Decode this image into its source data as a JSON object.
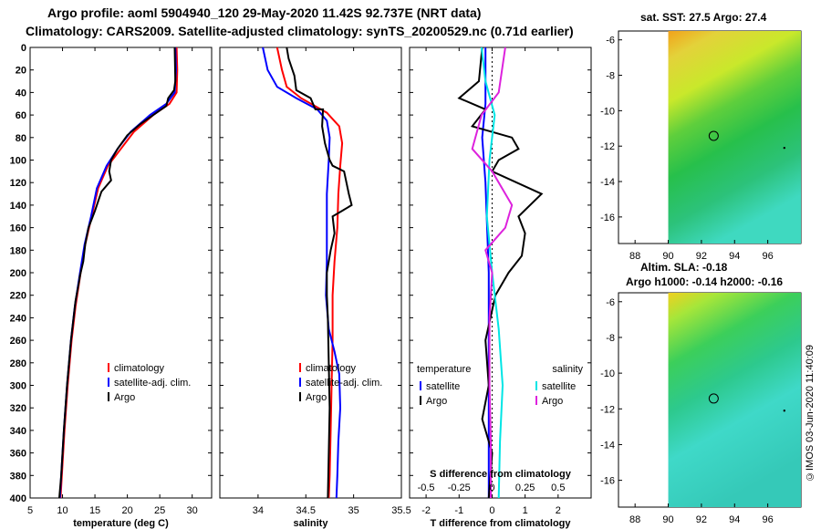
{
  "header": {
    "line1": "Argo profile: aoml 5904940_120 29-May-2020 11.42S 92.737E (NRT data)",
    "line2": "Climatology: CARS2009. Satellite-adjusted climatology: synTS_20200529.nc (0.71d earlier)"
  },
  "colors": {
    "climatology": "#ff0000",
    "satellite": "#0000ff",
    "argo": "#000000",
    "sat_salinity": "#00e5e5",
    "argo_salinity": "#dd22dd"
  },
  "chart_data": [
    {
      "type": "line",
      "panel": "temperature",
      "xlabel": "temperature (deg C)",
      "ylabel": "",
      "xlim": [
        5,
        33
      ],
      "ylim": [
        400,
        0
      ],
      "xticks": [
        5,
        10,
        15,
        20,
        25,
        30
      ],
      "yticks": [
        0,
        20,
        40,
        60,
        80,
        100,
        120,
        140,
        160,
        180,
        200,
        220,
        240,
        260,
        280,
        300,
        320,
        340,
        360,
        380,
        400
      ],
      "legend": [
        "climatology",
        "satellite-adj. clim.",
        "Argo"
      ],
      "series": [
        {
          "name": "climatology",
          "color": "#ff0000",
          "points": [
            [
              27.6,
              0
            ],
            [
              27.7,
              20
            ],
            [
              27.6,
              40
            ],
            [
              26.5,
              50
            ],
            [
              24,
              60
            ],
            [
              21,
              75
            ],
            [
              19,
              90
            ],
            [
              17,
              105
            ],
            [
              15.5,
              125
            ],
            [
              14.5,
              150
            ],
            [
              13.5,
              175
            ],
            [
              12.8,
              200
            ],
            [
              12,
              230
            ],
            [
              11.4,
              260
            ],
            [
              10.8,
              300
            ],
            [
              10.3,
              340
            ],
            [
              9.9,
              380
            ],
            [
              9.7,
              400
            ]
          ]
        },
        {
          "name": "satellite-adj. clim.",
          "color": "#0000ff",
          "points": [
            [
              27.4,
              0
            ],
            [
              27.5,
              20
            ],
            [
              27.3,
              40
            ],
            [
              26,
              50
            ],
            [
              23.5,
              60
            ],
            [
              20.5,
              75
            ],
            [
              18.5,
              90
            ],
            [
              16.8,
              105
            ],
            [
              15.3,
              125
            ],
            [
              14.4,
              150
            ],
            [
              13.4,
              175
            ],
            [
              12.7,
              200
            ],
            [
              11.9,
              230
            ],
            [
              11.3,
              260
            ],
            [
              10.7,
              300
            ],
            [
              10.2,
              340
            ],
            [
              9.8,
              380
            ],
            [
              9.6,
              400
            ]
          ]
        },
        {
          "name": "Argo",
          "color": "#000000",
          "points": [
            [
              27.3,
              0
            ],
            [
              27.4,
              30
            ],
            [
              27.2,
              38
            ],
            [
              26.3,
              45
            ],
            [
              26,
              52
            ],
            [
              24.5,
              58
            ],
            [
              22,
              68
            ],
            [
              20,
              78
            ],
            [
              18.5,
              90
            ],
            [
              17.5,
              100
            ],
            [
              17.2,
              110
            ],
            [
              17.5,
              118
            ],
            [
              16,
              128
            ],
            [
              15,
              145
            ],
            [
              14,
              160
            ],
            [
              13.5,
              175
            ],
            [
              13.2,
              190
            ],
            [
              12.6,
              205
            ],
            [
              12.8,
              200
            ],
            [
              12,
              225
            ],
            [
              11.3,
              260
            ],
            [
              10.7,
              300
            ],
            [
              10.2,
              340
            ],
            [
              9.8,
              380
            ],
            [
              9.5,
              400
            ]
          ]
        }
      ]
    },
    {
      "type": "line",
      "panel": "salinity",
      "xlabel": "salinity",
      "xlim": [
        33.6,
        35.5
      ],
      "ylim": [
        400,
        0
      ],
      "xticks": [
        34,
        34.5,
        35,
        35.5
      ],
      "legend": [
        "climatology",
        "satellite-adj. clim.",
        "Argo"
      ],
      "series": [
        {
          "name": "climatology",
          "color": "#ff0000",
          "points": [
            [
              34.2,
              0
            ],
            [
              34.25,
              20
            ],
            [
              34.3,
              35
            ],
            [
              34.45,
              45
            ],
            [
              34.72,
              58
            ],
            [
              34.85,
              70
            ],
            [
              34.88,
              85
            ],
            [
              34.86,
              105
            ],
            [
              34.84,
              130
            ],
            [
              34.83,
              160
            ],
            [
              34.8,
              190
            ],
            [
              34.78,
              220
            ],
            [
              34.78,
              260
            ],
            [
              34.77,
              300
            ],
            [
              34.76,
              340
            ],
            [
              34.75,
              380
            ],
            [
              34.74,
              400
            ]
          ]
        },
        {
          "name": "satellite-adj. clim.",
          "color": "#0000ff",
          "points": [
            [
              34.05,
              0
            ],
            [
              34.1,
              20
            ],
            [
              34.2,
              35
            ],
            [
              34.4,
              45
            ],
            [
              34.62,
              55
            ],
            [
              34.72,
              65
            ],
            [
              34.75,
              80
            ],
            [
              34.74,
              100
            ],
            [
              34.72,
              130
            ],
            [
              34.72,
              160
            ],
            [
              34.72,
              190
            ],
            [
              34.71,
              220
            ],
            [
              34.74,
              250
            ],
            [
              34.8,
              270
            ],
            [
              34.85,
              290
            ],
            [
              34.86,
              320
            ],
            [
              34.84,
              350
            ],
            [
              34.83,
              380
            ],
            [
              34.82,
              400
            ]
          ]
        },
        {
          "name": "Argo",
          "color": "#000000",
          "points": [
            [
              34.3,
              0
            ],
            [
              34.32,
              10
            ],
            [
              34.38,
              25
            ],
            [
              34.4,
              38
            ],
            [
              34.55,
              45
            ],
            [
              34.6,
              55
            ],
            [
              34.68,
              55
            ],
            [
              34.67,
              70
            ],
            [
              34.7,
              85
            ],
            [
              34.75,
              100
            ],
            [
              34.78,
              105
            ],
            [
              34.9,
              110
            ],
            [
              34.95,
              130
            ],
            [
              34.98,
              140
            ],
            [
              34.88,
              145
            ],
            [
              34.78,
              150
            ],
            [
              34.8,
              165
            ],
            [
              34.76,
              180
            ],
            [
              34.72,
              200
            ],
            [
              34.72,
              220
            ],
            [
              34.73,
              240
            ],
            [
              34.74,
              280
            ],
            [
              34.75,
              320
            ],
            [
              34.74,
              360
            ],
            [
              34.73,
              400
            ]
          ]
        }
      ]
    },
    {
      "type": "line",
      "panel": "differences",
      "xlabel": "T difference from climatology",
      "top_xlabel": "S difference from climatology",
      "xlim": [
        -2.5,
        3
      ],
      "top_xlim": [
        -0.625,
        0.75
      ],
      "ylim": [
        400,
        0
      ],
      "xticks": [
        -2,
        -1,
        0,
        1,
        2
      ],
      "top_xticks": [
        -0.5,
        -0.25,
        0,
        0.25,
        0.5
      ],
      "top_xtick_labels": [
        "-0.5",
        "-0.25",
        "0",
        "0.25",
        "0.5"
      ],
      "legend_left_title": "temperature",
      "legend_right_title": "salinity",
      "legend": [
        "satellite",
        "Argo",
        "satellite",
        "Argo"
      ],
      "series": [
        {
          "name": "T satellite",
          "color": "#0000ff",
          "points": [
            [
              -0.2,
              0
            ],
            [
              -0.2,
              50
            ],
            [
              -0.3,
              80
            ],
            [
              -0.2,
              120
            ],
            [
              -0.1,
              200
            ],
            [
              -0.1,
              300
            ],
            [
              -0.1,
              400
            ]
          ]
        },
        {
          "name": "T Argo",
          "color": "#000000",
          "points": [
            [
              -0.3,
              0
            ],
            [
              -0.4,
              30
            ],
            [
              -1,
              45
            ],
            [
              -0.2,
              55
            ],
            [
              -0.6,
              70
            ],
            [
              0.6,
              80
            ],
            [
              0.8,
              90
            ],
            [
              0.2,
              100
            ],
            [
              0,
              110
            ],
            [
              1.5,
              130
            ],
            [
              0.8,
              150
            ],
            [
              1,
              165
            ],
            [
              0.9,
              185
            ],
            [
              0.5,
              200
            ],
            [
              0.1,
              220
            ],
            [
              -0.2,
              260
            ],
            [
              -0.1,
              300
            ],
            [
              -0.3,
              330
            ],
            [
              0,
              360
            ],
            [
              -0.1,
              400
            ]
          ]
        },
        {
          "name": "S satellite",
          "color": "#00e5e5",
          "axis": "top",
          "points": [
            [
              -0.08,
              0
            ],
            [
              -0.05,
              30
            ],
            [
              0.02,
              60
            ],
            [
              -0.02,
              100
            ],
            [
              -0.04,
              150
            ],
            [
              0,
              200
            ],
            [
              0.05,
              250
            ],
            [
              0.08,
              300
            ],
            [
              0.06,
              350
            ],
            [
              0.05,
              400
            ]
          ]
        },
        {
          "name": "S Argo",
          "color": "#dd22dd",
          "axis": "top",
          "points": [
            [
              0.1,
              0
            ],
            [
              0.05,
              40
            ],
            [
              -0.08,
              60
            ],
            [
              -0.15,
              90
            ],
            [
              0,
              110
            ],
            [
              0.15,
              140
            ],
            [
              0.1,
              160
            ],
            [
              -0.05,
              180
            ],
            [
              0,
              200
            ],
            [
              -0.02,
              240
            ],
            [
              -0.02,
              300
            ],
            [
              -0.01,
              350
            ],
            [
              -0.01,
              400
            ]
          ]
        }
      ]
    },
    {
      "type": "heatmap",
      "panel": "sst_map",
      "title": "sat. SST: 27.5 Argo: 27.4",
      "xticks": [
        "88",
        "90",
        "92",
        "94",
        "96"
      ],
      "yticks": [
        "-6",
        "-8",
        "-10",
        "-12",
        "-14",
        "-16"
      ],
      "xlim": [
        87,
        98
      ],
      "ylim": [
        -17.5,
        -5.5
      ],
      "marker": [
        92.74,
        -11.42
      ]
    },
    {
      "type": "heatmap",
      "panel": "sla_map",
      "title1": "Altim. SLA: -0.18",
      "title2": "Argo h1000: -0.14 h2000: -0.16",
      "xticks": [
        "88",
        "90",
        "92",
        "94",
        "96"
      ],
      "yticks": [
        "-6",
        "-8",
        "-10",
        "-12",
        "-14",
        "-16"
      ],
      "xlim": [
        87,
        98
      ],
      "ylim": [
        -17.5,
        -5.5
      ],
      "marker": [
        92.74,
        -11.42
      ]
    }
  ],
  "footer": {
    "stamp": "©IMOS 03-Jun-2020 11:40:09"
  }
}
